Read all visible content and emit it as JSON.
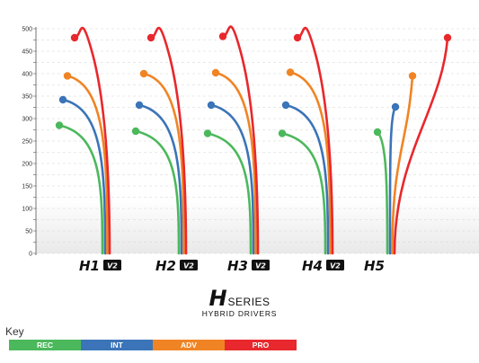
{
  "chart_data": {
    "type": "line",
    "y_ticks": [
      0,
      25,
      50,
      75,
      100,
      125,
      150,
      175,
      200,
      225,
      250,
      275,
      300,
      325,
      350,
      375,
      400,
      425,
      450,
      475,
      500
    ],
    "y_labels": [
      0,
      50,
      100,
      150,
      200,
      250,
      300,
      350,
      400,
      450,
      500
    ],
    "ylim": [
      0,
      500
    ],
    "grid": "dashed horizontal gridlines",
    "models": [
      {
        "name": "H1",
        "badge": "V2",
        "values": {
          "REC": 285,
          "INT": 342,
          "ADV": 395,
          "PRO": 480
        }
      },
      {
        "name": "H2",
        "badge": "V2",
        "values": {
          "REC": 272,
          "INT": 330,
          "ADV": 400,
          "PRO": 480
        }
      },
      {
        "name": "H3",
        "badge": "V2",
        "values": {
          "REC": 267,
          "INT": 330,
          "ADV": 402,
          "PRO": 483
        }
      },
      {
        "name": "H4",
        "badge": "V2",
        "values": {
          "REC": 267,
          "INT": 330,
          "ADV": 403,
          "PRO": 480
        }
      },
      {
        "name": "H5",
        "badge": "",
        "values": {
          "REC": 270,
          "INT": 326,
          "ADV": 395,
          "PRO": 480
        }
      }
    ]
  },
  "brand": {
    "letter": "H",
    "series": "SERIES",
    "subtitle": "HYBRID DRIVERS"
  },
  "key": {
    "label": "Key",
    "items": [
      {
        "name": "REC",
        "color": "#4cb85c"
      },
      {
        "name": "INT",
        "color": "#3b74b8"
      },
      {
        "name": "ADV",
        "color": "#f08424"
      },
      {
        "name": "PRO",
        "color": "#e8282c"
      }
    ]
  }
}
